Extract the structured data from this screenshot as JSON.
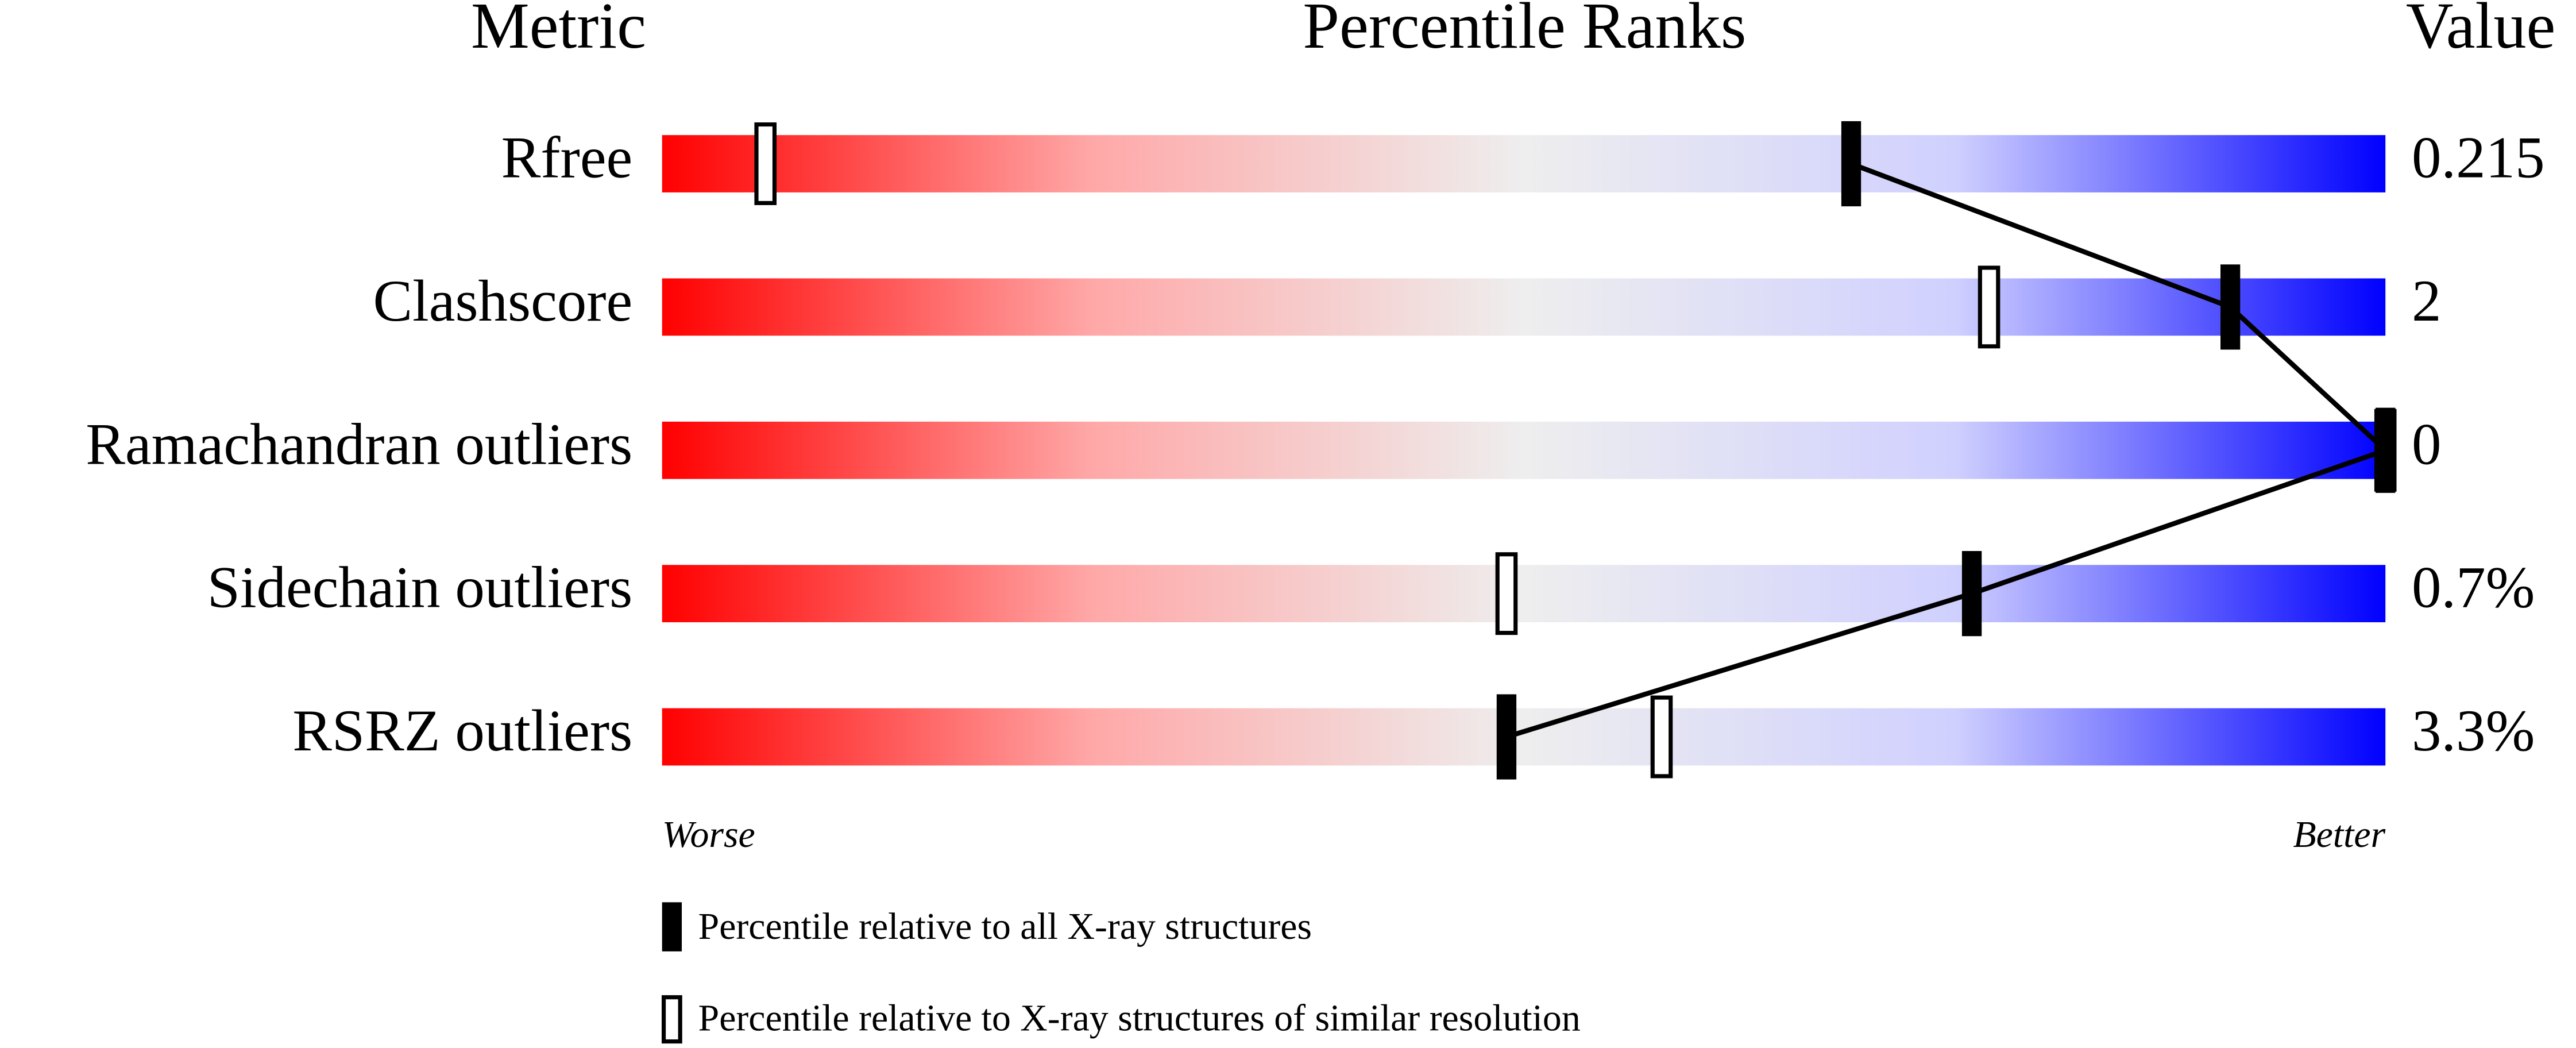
{
  "chart_data": {
    "type": "percentile-slider",
    "headers": [
      "Metric",
      "Percentile Ranks",
      "Value"
    ],
    "categories": [
      "Rfree",
      "Clashscore",
      "Ramachandran outliers",
      "Sidechain outliers",
      "RSRZ outliers"
    ],
    "value_texts": [
      "0.215",
      "2",
      "0",
      "0.7%",
      "3.3%"
    ],
    "xlim": [
      0,
      100
    ],
    "x_end_labels": [
      "Worse",
      "Better"
    ],
    "series": [
      {
        "name": "Percentile relative to all X-ray structures",
        "color": "#000000",
        "style": "filled",
        "values": [
          69,
          91,
          100,
          76,
          49
        ]
      },
      {
        "name": "Percentile relative to X-ray structures of similar resolution",
        "color": "#000000",
        "style": "open",
        "values": [
          6,
          77,
          100,
          49,
          58
        ]
      }
    ],
    "connect_series": 0
  }
}
